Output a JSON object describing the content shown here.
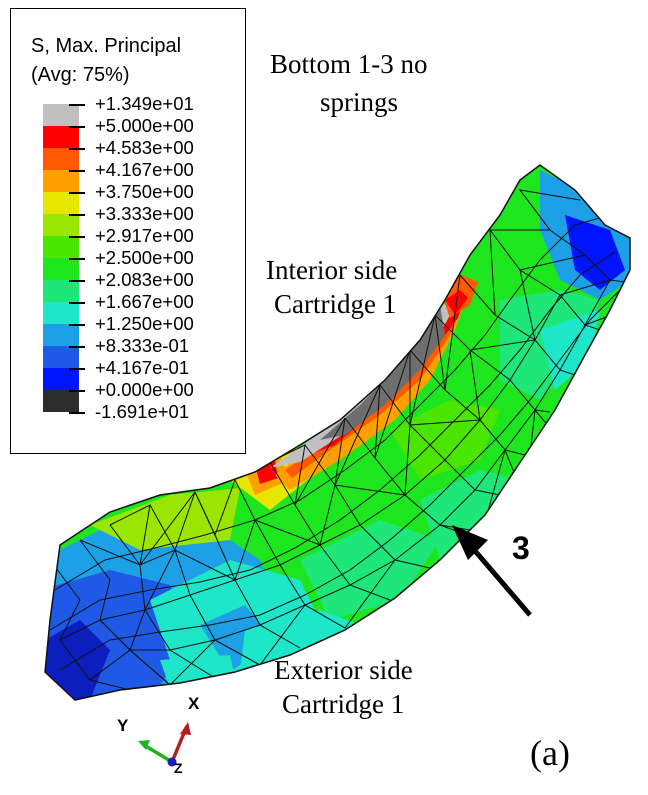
{
  "legend": {
    "title_line1": "S, Max. Principal",
    "title_line2": "(Avg: 75%)",
    "values": [
      "+1.349e+01",
      "+5.000e+00",
      "+4.583e+00",
      "+4.167e+00",
      "+3.750e+00",
      "+3.333e+00",
      "+2.917e+00",
      "+2.500e+00",
      "+2.083e+00",
      "+1.667e+00",
      "+1.250e+00",
      "+8.333e-01",
      "+4.167e-01",
      "+0.000e+00",
      "-1.691e+01"
    ],
    "colors": [
      "#c0c0c0",
      "#ff0000",
      "#ff5a00",
      "#ffa000",
      "#e6e600",
      "#9be600",
      "#4be600",
      "#1ee61e",
      "#1ee678",
      "#1ee6c8",
      "#1ea0e6",
      "#1e5ae6",
      "#0014ff",
      "#2d2d2d"
    ]
  },
  "annotations": {
    "case_title_line1": "Bottom 1-3 no",
    "case_title_line2": "springs",
    "interior_line1": "Interior side",
    "interior_line2": "Cartridge 1",
    "exterior_line1": "Exterior side",
    "exterior_line2": "Cartridge 1",
    "arrow_number": "3",
    "panel_label": "(a)"
  },
  "triad": {
    "x_label": "X",
    "y_label": "Y",
    "z_label": "Z",
    "x_color": "#b41e1e",
    "y_color": "#1eb41e",
    "z_color": "#1e1eb4"
  }
}
